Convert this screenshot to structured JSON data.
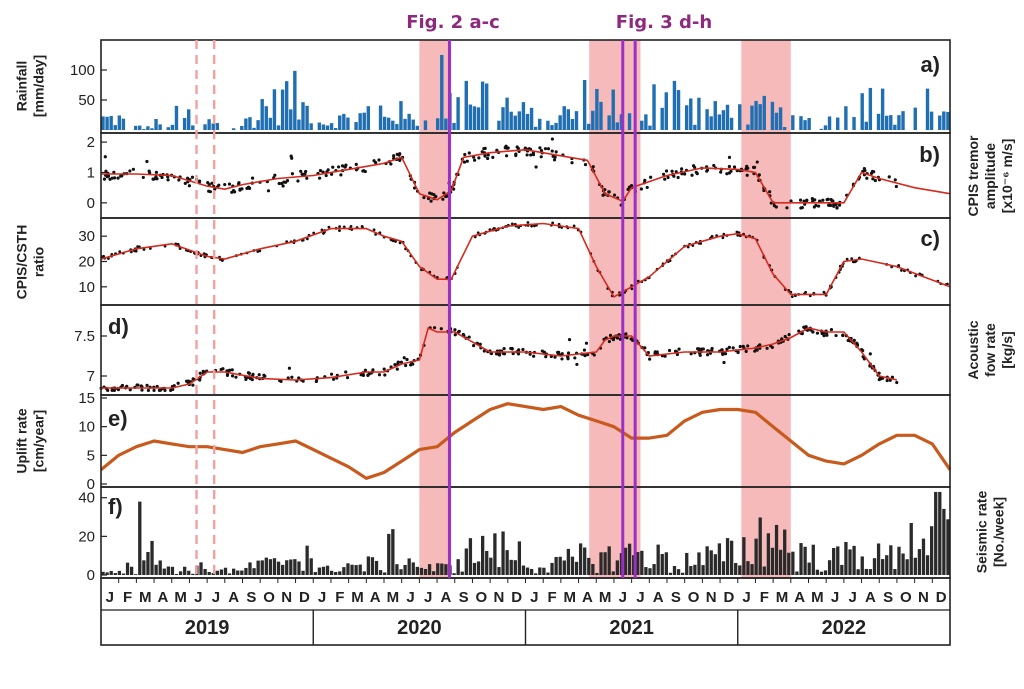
{
  "figure": {
    "top_annotations": [
      {
        "label": "Fig. 2 a-c",
        "color": "#8e2a7e"
      },
      {
        "label": "Fig. 3 d-h",
        "color": "#8e2a7e"
      }
    ],
    "years": [
      "2019",
      "2020",
      "2021",
      "2022"
    ],
    "month_labels": [
      "J",
      "F",
      "M",
      "A",
      "M",
      "J",
      "J",
      "A",
      "S",
      "O",
      "N",
      "D"
    ],
    "colors": {
      "shade": "#f4a3a3",
      "event_line": "#9b30c7",
      "dashed": "#f2a0a0",
      "rain": "#1f6fb2",
      "fit": "#d62a1e",
      "uplift": "#c75a1c",
      "seismic": "#2a2a2a"
    }
  },
  "chart_data": [
    {
      "type": "bar",
      "panel": "a)",
      "ylabel": "Rainfall [mm/day]",
      "ylim": [
        0,
        145
      ],
      "yticks": [
        50,
        100
      ],
      "ytick_labels": [
        "50",
        "100"
      ],
      "x_unit": "months since Jan 2019",
      "shaded_periods": [
        [
          18,
          19.8
        ],
        [
          27.6,
          30.5
        ],
        [
          36.2,
          39
        ]
      ],
      "event_lines": [
        19.7,
        29.5,
        30.2
      ],
      "dashed_lines": [
        5.4,
        6.4
      ],
      "values_monthly_mean": [
        20,
        15,
        5,
        12,
        25,
        8,
        15,
        5,
        20,
        45,
        60,
        40,
        15,
        20,
        25,
        35,
        30,
        20,
        15,
        40,
        80,
        65,
        45,
        30,
        25,
        20,
        30,
        55,
        50,
        20,
        30,
        70,
        60,
        40,
        30,
        35,
        30,
        35,
        25,
        15,
        10,
        20,
        70,
        60,
        50,
        40,
        45,
        35
      ]
    },
    {
      "type": "scatter",
      "panel": "b)",
      "ylabel": "CPIS tremor amplitude [x10⁻⁶ m/s]",
      "ylim": [
        -0.4,
        2.2
      ],
      "yticks": [
        0,
        1,
        2
      ],
      "ytick_labels": [
        "0",
        "1",
        "2"
      ],
      "series": [
        {
          "name": "fit",
          "style": "line",
          "x": [
            0,
            2,
            4,
            6,
            7,
            8,
            10,
            12,
            14,
            16,
            17,
            18,
            19,
            19.8,
            20.5,
            22,
            24,
            26,
            27.5,
            28.5,
            29.5,
            30,
            32,
            34,
            36,
            37,
            38,
            38.5,
            40.5,
            42,
            43,
            44,
            46,
            48
          ],
          "y": [
            0.95,
            0.95,
            0.9,
            0.55,
            0.45,
            0.6,
            0.8,
            0.9,
            1.1,
            1.3,
            1.5,
            0.3,
            0.1,
            0.4,
            1.5,
            1.65,
            1.75,
            1.55,
            1.4,
            0.3,
            0.05,
            0.5,
            0.9,
            1.15,
            1.1,
            1.0,
            0.0,
            0.0,
            0.0,
            0.0,
            1.0,
            0.8,
            0.5,
            0.3
          ]
        }
      ]
    },
    {
      "type": "line",
      "panel": "c)",
      "ylabel": "CPIS/CSTH ratio",
      "ylim": [
        4,
        36
      ],
      "yticks": [
        10,
        20,
        30
      ],
      "ytick_labels": [
        "10",
        "20",
        "30"
      ],
      "series": [
        {
          "name": "fit",
          "style": "line",
          "x": [
            0,
            2,
            4,
            6,
            7,
            9,
            11,
            13,
            15,
            16,
            17,
            18,
            19,
            19.8,
            21,
            23,
            25,
            27,
            28,
            29,
            30,
            31,
            33,
            35,
            36,
            37,
            38,
            39,
            40,
            41,
            42,
            43,
            45,
            48
          ],
          "y": [
            21,
            25,
            27,
            22,
            21,
            25,
            28,
            33,
            33,
            30,
            28,
            18,
            13,
            13,
            30,
            34,
            35,
            33,
            18,
            6,
            10,
            14,
            26,
            30,
            31,
            29,
            15,
            7,
            7,
            7,
            20,
            21,
            18,
            10
          ]
        }
      ]
    },
    {
      "type": "scatter",
      "panel": "d)",
      "ylabel": "Acoustic fow rate [kg/s]",
      "ylim": [
        6.8,
        7.85
      ],
      "yticks": [
        7,
        7.5
      ],
      "ytick_labels": [
        "7",
        "7.5"
      ],
      "series": [
        {
          "name": "fit",
          "style": "line",
          "x": [
            0,
            2,
            4,
            5,
            6,
            7,
            9,
            11,
            13,
            15,
            16,
            17,
            18,
            18.5,
            19,
            20,
            22,
            24,
            26,
            28,
            28.5,
            29,
            30,
            31,
            33,
            35,
            37,
            38,
            39,
            40,
            41,
            42,
            43,
            44,
            45
          ],
          "y": [
            6.85,
            6.85,
            6.85,
            6.9,
            7.05,
            7.05,
            6.97,
            6.95,
            6.98,
            7.05,
            7.05,
            7.15,
            7.2,
            7.6,
            7.55,
            7.55,
            7.3,
            7.3,
            7.25,
            7.3,
            7.45,
            7.5,
            7.5,
            7.25,
            7.3,
            7.3,
            7.35,
            7.4,
            7.48,
            7.6,
            7.55,
            7.55,
            7.3,
            7.0,
            6.95
          ]
        }
      ]
    },
    {
      "type": "line",
      "panel": "e)",
      "ylabel": "Uplift rate [cm/year]",
      "ylim": [
        0,
        15
      ],
      "yticks": [
        0,
        5,
        10,
        15
      ],
      "ytick_labels": [
        "0",
        "5",
        "10",
        "15"
      ],
      "series": [
        {
          "name": "uplift",
          "style": "line",
          "x": [
            0,
            1,
            2,
            3,
            4,
            5,
            6,
            7,
            8,
            9,
            10,
            11,
            12,
            13,
            14,
            15,
            16,
            17,
            18,
            19,
            20,
            21,
            22,
            23,
            24,
            25,
            26,
            27,
            28,
            29,
            30,
            31,
            32,
            33,
            34,
            35,
            36,
            37,
            38,
            39,
            40,
            41,
            42,
            43,
            44,
            45,
            46,
            47,
            48
          ],
          "y": [
            2.5,
            5,
            6.5,
            7.5,
            7,
            6.5,
            6.5,
            6,
            5.5,
            6.5,
            7,
            7.5,
            6,
            4.5,
            3,
            1,
            2,
            4,
            6,
            6.5,
            9,
            11,
            13,
            14,
            13.5,
            13,
            13.5,
            12,
            11,
            10,
            8,
            8,
            8.5,
            11,
            12.5,
            13,
            13,
            12.5,
            10,
            7.5,
            5,
            4,
            3.5,
            5,
            7,
            8.5,
            8.5,
            7,
            2.5
          ]
        }
      ]
    },
    {
      "type": "bar",
      "panel": "f)",
      "ylabel": "Seismic rate [No./week]",
      "ylim": [
        0,
        44
      ],
      "yticks": [
        0,
        20,
        40
      ],
      "ytick_labels": [
        "0",
        "20",
        "40"
      ],
      "values_monthly_mean": [
        3,
        4,
        20,
        5,
        3,
        4,
        3,
        2,
        5,
        6,
        10,
        14,
        3,
        6,
        5,
        6,
        14,
        8,
        4,
        4,
        12,
        15,
        14,
        12,
        5,
        6,
        8,
        10,
        10,
        12,
        12,
        10,
        5,
        8,
        10,
        12,
        15,
        25,
        20,
        12,
        10,
        9,
        12,
        10,
        10,
        20,
        25,
        30
      ]
    }
  ]
}
